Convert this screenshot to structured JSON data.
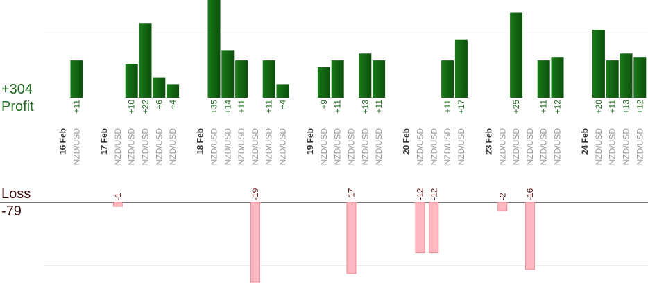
{
  "summary": {
    "profit_total": "+304",
    "profit_label": "Profit",
    "loss_label": "Loss",
    "loss_total": "-79"
  },
  "colors": {
    "profit_bar_dark": "#0b4f0b",
    "profit_bar_light": "#197a19",
    "profit_text": "#1f6b1f",
    "loss_bar": "#ffb8bf",
    "loss_bar_border": "#f08a94",
    "loss_text": "#5a1010",
    "date_text": "#333333",
    "pair_text": "#9a9a9a",
    "grid": "#eeeeee",
    "baseline": "#777777"
  },
  "chart_data": {
    "type": "bar",
    "profit_scale_max": 35,
    "loss_scale_max": 19,
    "profit_bars": [
      {
        "slot": 5,
        "value": 11,
        "label": "+11"
      },
      {
        "slot": 9,
        "value": 10,
        "label": "+10"
      },
      {
        "slot": 10,
        "value": 22,
        "label": "+22"
      },
      {
        "slot": 11,
        "value": 6,
        "label": "+6"
      },
      {
        "slot": 12,
        "value": 4,
        "label": "+4"
      },
      {
        "slot": 15,
        "value": 35,
        "label": "+35"
      },
      {
        "slot": 16,
        "value": 14,
        "label": "+14"
      },
      {
        "slot": 17,
        "value": 11,
        "label": "+11"
      },
      {
        "slot": 19,
        "value": 11,
        "label": "+11"
      },
      {
        "slot": 20,
        "value": 4,
        "label": "+4"
      },
      {
        "slot": 23,
        "value": 9,
        "label": "+9"
      },
      {
        "slot": 24,
        "value": 11,
        "label": "+11"
      },
      {
        "slot": 26,
        "value": 13,
        "label": "+13"
      },
      {
        "slot": 27,
        "value": 11,
        "label": "+11"
      },
      {
        "slot": 32,
        "value": 11,
        "label": "+11"
      },
      {
        "slot": 33,
        "value": 17,
        "label": "+17"
      },
      {
        "slot": 37,
        "value": 25,
        "label": "+25"
      },
      {
        "slot": 39,
        "value": 11,
        "label": "+11"
      },
      {
        "slot": 40,
        "value": 12,
        "label": "+12"
      },
      {
        "slot": 43,
        "value": 20,
        "label": "+20"
      },
      {
        "slot": 44,
        "value": 11,
        "label": "+11"
      },
      {
        "slot": 45,
        "value": 13,
        "label": "+13"
      },
      {
        "slot": 46,
        "value": 12,
        "label": "+12"
      }
    ],
    "loss_bars": [
      {
        "slot": 8,
        "value": -1,
        "label": "-1"
      },
      {
        "slot": 18,
        "value": -19,
        "label": "-19"
      },
      {
        "slot": 25,
        "value": -17,
        "label": "-17"
      },
      {
        "slot": 30,
        "value": -12,
        "label": "-12"
      },
      {
        "slot": 31,
        "value": -12,
        "label": "-12"
      },
      {
        "slot": 36,
        "value": -2,
        "label": "-2"
      },
      {
        "slot": 38,
        "value": -16,
        "label": "-16"
      }
    ],
    "x_labels": [
      {
        "slot": 4,
        "text": "16 Feb",
        "kind": "date"
      },
      {
        "slot": 5,
        "text": "NZD/USD",
        "kind": "pair"
      },
      {
        "slot": 7,
        "text": "17 Feb",
        "kind": "date"
      },
      {
        "slot": 8,
        "text": "NZD/USD",
        "kind": "pair"
      },
      {
        "slot": 9,
        "text": "NZD/USD",
        "kind": "pair"
      },
      {
        "slot": 10,
        "text": "NZD/USD",
        "kind": "pair"
      },
      {
        "slot": 11,
        "text": "NZD/USD",
        "kind": "pair"
      },
      {
        "slot": 12,
        "text": "NZD/USD",
        "kind": "pair"
      },
      {
        "slot": 14,
        "text": "18 Feb",
        "kind": "date"
      },
      {
        "slot": 15,
        "text": "NZD/USD",
        "kind": "pair"
      },
      {
        "slot": 16,
        "text": "NZD/USD",
        "kind": "pair"
      },
      {
        "slot": 17,
        "text": "NZD/USD",
        "kind": "pair"
      },
      {
        "slot": 18,
        "text": "NZD/USD",
        "kind": "pair"
      },
      {
        "slot": 19,
        "text": "NZD/USD",
        "kind": "pair"
      },
      {
        "slot": 20,
        "text": "NZD/USD",
        "kind": "pair"
      },
      {
        "slot": 22,
        "text": "19 Feb",
        "kind": "date"
      },
      {
        "slot": 23,
        "text": "NZD/USD",
        "kind": "pair"
      },
      {
        "slot": 24,
        "text": "NZD/USD",
        "kind": "pair"
      },
      {
        "slot": 25,
        "text": "NZD/USD",
        "kind": "pair"
      },
      {
        "slot": 26,
        "text": "NZD/USD",
        "kind": "pair"
      },
      {
        "slot": 27,
        "text": "NZD/USD",
        "kind": "pair"
      },
      {
        "slot": 29,
        "text": "20 Feb",
        "kind": "date"
      },
      {
        "slot": 30,
        "text": "NZD/USD",
        "kind": "pair"
      },
      {
        "slot": 31,
        "text": "NZD/USD",
        "kind": "pair"
      },
      {
        "slot": 32,
        "text": "NZD/USD",
        "kind": "pair"
      },
      {
        "slot": 33,
        "text": "NZD/USD",
        "kind": "pair"
      },
      {
        "slot": 35,
        "text": "23 Feb",
        "kind": "date"
      },
      {
        "slot": 36,
        "text": "NZD/USD",
        "kind": "pair"
      },
      {
        "slot": 37,
        "text": "NZD/USD",
        "kind": "pair"
      },
      {
        "slot": 38,
        "text": "NZD/USD",
        "kind": "pair"
      },
      {
        "slot": 39,
        "text": "NZD/USD",
        "kind": "pair"
      },
      {
        "slot": 40,
        "text": "NZD/USD",
        "kind": "pair"
      },
      {
        "slot": 42,
        "text": "24 Feb",
        "kind": "date"
      },
      {
        "slot": 43,
        "text": "NZD/USD",
        "kind": "pair"
      },
      {
        "slot": 44,
        "text": "NZD/USD",
        "kind": "pair"
      },
      {
        "slot": 45,
        "text": "NZD/USD",
        "kind": "pair"
      },
      {
        "slot": 46,
        "text": "NZD/USD",
        "kind": "pair"
      }
    ]
  }
}
